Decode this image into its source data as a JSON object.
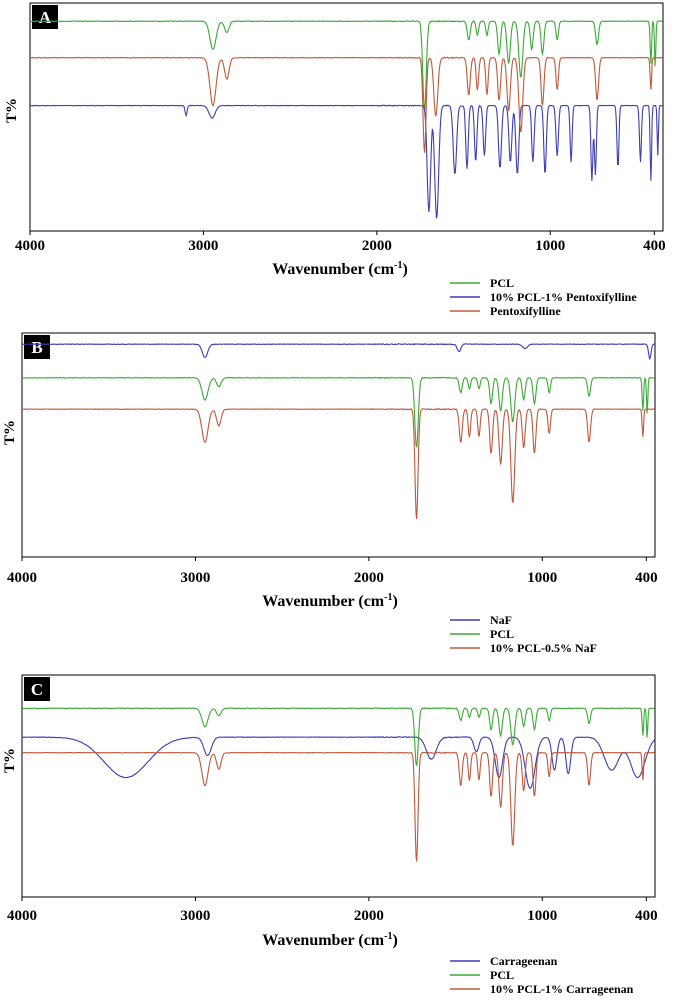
{
  "chart_data": [
    {
      "type": "line",
      "panel_label": "A",
      "xlabel": "Wavenumber (cm",
      "xlabel_sup": "-1",
      "xlabel_end": ")",
      "ylabel": "T%",
      "xlim": [
        4000,
        350
      ],
      "x_ticks": [
        "4000",
        "3000",
        "2000",
        "1000",
        "400"
      ],
      "x_tick_values": [
        4000,
        3000,
        2000,
        1000,
        400
      ],
      "series": [
        {
          "name": "PCL",
          "color": "#3aaa35",
          "offset": 0.92,
          "scale": 0.75,
          "profile": "pcl"
        },
        {
          "name": "10% PCL-1% Pentoxifylline",
          "color": "#3b3db5",
          "offset": 0.55,
          "scale": 1.0,
          "profile": "ptx"
        },
        {
          "name": "Pentoxifylline",
          "color": "#c0583a",
          "offset": 0.76,
          "scale": 0.85,
          "profile": "pcl_ptx"
        }
      ]
    },
    {
      "type": "line",
      "panel_label": "B",
      "xlabel": "Wavenumber (cm",
      "xlabel_sup": "-1",
      "xlabel_end": ")",
      "ylabel": "T%",
      "xlim": [
        4000,
        350
      ],
      "x_ticks": [
        "4000",
        "3000",
        "2000",
        "1000",
        "400"
      ],
      "x_tick_values": [
        4000,
        3000,
        2000,
        1000,
        400
      ],
      "series": [
        {
          "name": "NaF",
          "color": "#3b3db5",
          "offset": 0.95,
          "scale": 0.12,
          "profile": "naf"
        },
        {
          "name": "PCL",
          "color": "#3aaa35",
          "offset": 0.8,
          "scale": 0.6,
          "profile": "pcl"
        },
        {
          "name": "10% PCL-0.5% NaF",
          "color": "#c0583a",
          "offset": 0.66,
          "scale": 0.9,
          "profile": "pcl_strong"
        }
      ]
    },
    {
      "type": "line",
      "panel_label": "C",
      "xlabel": "Wavenumber (cm",
      "xlabel_sup": "-1",
      "xlabel_end": ")",
      "ylabel": "T%",
      "xlim": [
        4000,
        350
      ],
      "x_ticks": [
        "4000",
        "3000",
        "2000",
        "1000",
        "400"
      ],
      "x_tick_values": [
        4000,
        3000,
        2000,
        1000,
        400
      ],
      "series": [
        {
          "name": "Carrageenan",
          "color": "#3b3db5",
          "offset": 0.72,
          "scale": 0.6,
          "profile": "carr"
        },
        {
          "name": "PCL",
          "color": "#3aaa35",
          "offset": 0.85,
          "scale": 0.5,
          "profile": "pcl"
        },
        {
          "name": "10% PCL-1% Carrageenan",
          "color": "#c0583a",
          "offset": 0.65,
          "scale": 0.9,
          "profile": "pcl_strong"
        }
      ]
    }
  ]
}
